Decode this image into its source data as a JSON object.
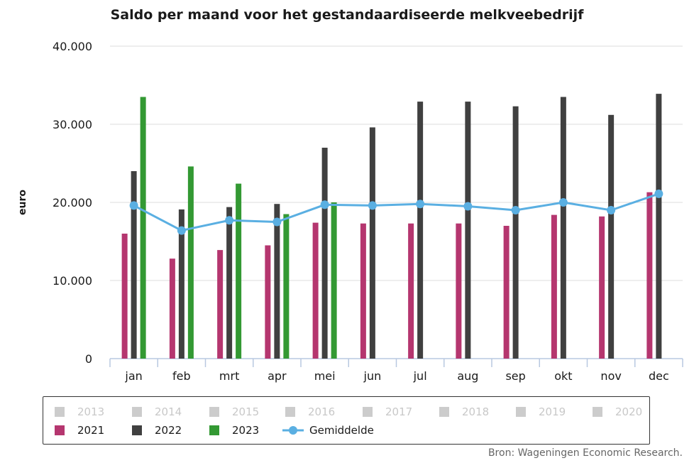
{
  "chart_data": {
    "type": "bar",
    "title": "Saldo per maand voor het gestandaardiseerde melkveebedrijf",
    "ylabel": "euro",
    "xlabel": "",
    "ylim": [
      0,
      40000
    ],
    "yticks": [
      "0",
      "10.000",
      "20.000",
      "30.000",
      "40.000"
    ],
    "ytick_values": [
      0,
      10000,
      20000,
      30000,
      40000
    ],
    "categories": [
      "jan",
      "feb",
      "mrt",
      "apr",
      "mei",
      "jun",
      "jul",
      "aug",
      "sep",
      "okt",
      "nov",
      "dec"
    ],
    "series": [
      {
        "name": "2021",
        "color": "#b5366f",
        "values": [
          16000,
          12800,
          13900,
          14500,
          17400,
          17300,
          17300,
          17300,
          17000,
          18400,
          18200,
          21300
        ]
      },
      {
        "name": "2022",
        "color": "#404040",
        "values": [
          24000,
          19100,
          19400,
          19800,
          27000,
          29600,
          32900,
          32900,
          32300,
          33500,
          31200,
          33900
        ]
      },
      {
        "name": "2023",
        "color": "#339933",
        "values": [
          33500,
          24600,
          22400,
          18500,
          20000,
          null,
          null,
          null,
          null,
          null,
          null,
          null
        ]
      }
    ],
    "line_series": {
      "name": "Gemiddelde",
      "color": "#5aafe2",
      "values": [
        19600,
        16400,
        17700,
        17500,
        19700,
        19600,
        19800,
        19500,
        19000,
        20000,
        19000,
        21100
      ]
    },
    "grid": true,
    "legend_position": "bottom"
  },
  "legend": {
    "hidden_items": [
      {
        "label": "2013",
        "color": "#cccccc"
      },
      {
        "label": "2014",
        "color": "#cccccc"
      },
      {
        "label": "2015",
        "color": "#cccccc"
      },
      {
        "label": "2016",
        "color": "#cccccc"
      },
      {
        "label": "2017",
        "color": "#cccccc"
      },
      {
        "label": "2018",
        "color": "#cccccc"
      },
      {
        "label": "2019",
        "color": "#cccccc"
      },
      {
        "label": "2020",
        "color": "#cccccc"
      }
    ],
    "active_items": [
      {
        "label": "2021",
        "color": "#b5366f",
        "kind": "bar"
      },
      {
        "label": "2022",
        "color": "#404040",
        "kind": "bar"
      },
      {
        "label": "2023",
        "color": "#339933",
        "kind": "bar"
      },
      {
        "label": "Gemiddelde",
        "color": "#5aafe2",
        "kind": "line"
      }
    ]
  },
  "source": "Bron: Wageningen Economic Research."
}
